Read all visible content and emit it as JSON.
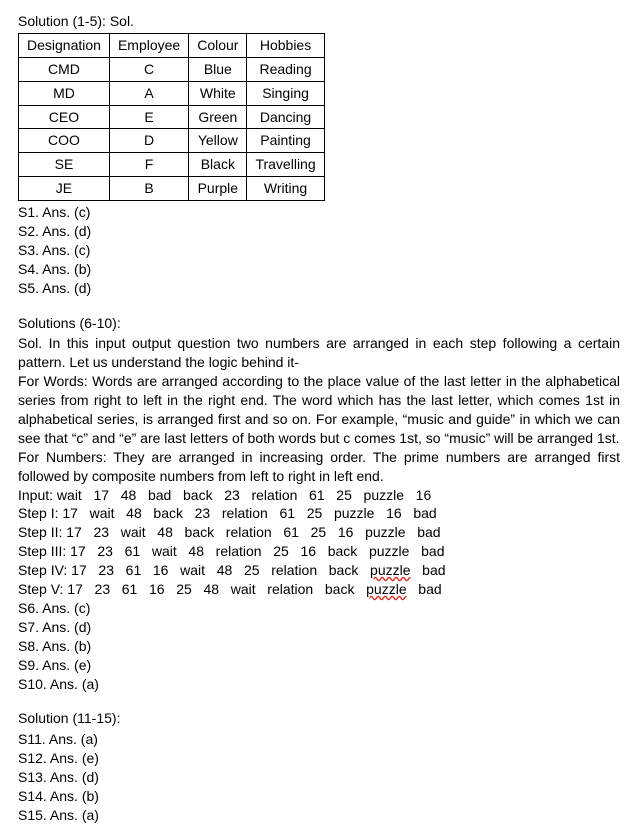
{
  "section1": {
    "heading": "Solution (1-5): Sol.",
    "table": {
      "headers": [
        "Designation",
        "Employee",
        "Colour",
        "Hobbies"
      ],
      "rows": [
        [
          "CMD",
          "C",
          "Blue",
          "Reading"
        ],
        [
          "MD",
          "A",
          "White",
          "Singing"
        ],
        [
          "CEO",
          "E",
          "Green",
          "Dancing"
        ],
        [
          "COO",
          "D",
          "Yellow",
          "Painting"
        ],
        [
          "SE",
          "F",
          "Black",
          "Travelling"
        ],
        [
          "JE",
          "B",
          "Purple",
          "Writing"
        ]
      ]
    },
    "answers": [
      "S1. Ans. (c)",
      "S2. Ans. (d)",
      "S3. Ans. (c)",
      "S4. Ans. (b)",
      "S5. Ans. (d)"
    ]
  },
  "section2": {
    "heading": "Solutions (6-10):",
    "para1": "Sol. In this input output question two numbers are arranged in each step following a certain pattern.  Let us understand the logic behind it-",
    "para2": "For Words:  Words are arranged according to the place value of the last letter in the alphabetical series from right to left in the right end. The word which has the last letter, which comes 1st in alphabetical series, is arranged first and so on. For example, “music and guide” in which we can see that “c” and “e” are last letters of both words but c comes 1st, so “music” will be arranged 1st.",
    "para3": "For Numbers: They are arranged in increasing order. The prime numbers are arranged first followed by composite numbers from left to right in left end.",
    "steps": {
      "input": "Input: wait   17   48   bad   back   23   relation   61   25   puzzle   16",
      "s1": "Step I: 17   wait   48   back   23   relation   61   25   puzzle   16   bad",
      "s2": "Step II: 17   23   wait   48   back   relation   61   25   16   puzzle   bad",
      "s3": "Step III: 17   23   61   wait   48   relation   25   16   back   puzzle   bad",
      "s4_pre": "Step IV: 17   23   61   16   wait   48   25   relation   back   ",
      "s4_word": "puzzle",
      "s4_post": "   bad",
      "s5_pre": "Step V: 17   23   61   16   25   48   wait   relation   back   ",
      "s5_word": "puzzle",
      "s5_post": "   bad"
    },
    "answers": [
      "S6. Ans. (c)",
      "S7. Ans. (d)",
      "S8. Ans. (b)",
      "S9. Ans. (e)",
      "S10. Ans. (a)"
    ]
  },
  "section3": {
    "heading": "Solution (11-15):",
    "answers": [
      "S11. Ans. (a)",
      "S12. Ans. (e)",
      "S13. Ans. (d)",
      "S14. Ans. (b)",
      "S15. Ans. (a)"
    ]
  }
}
